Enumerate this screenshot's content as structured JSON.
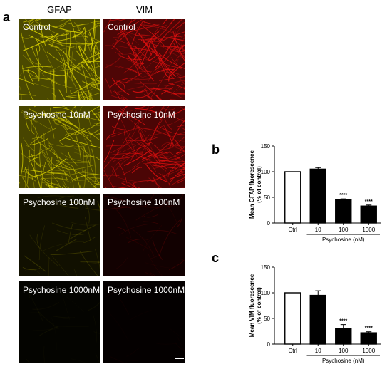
{
  "panel_a": {
    "letter": "a",
    "columns": [
      "GFAP",
      "VIM"
    ],
    "rows": [
      {
        "gfap_label": "Control",
        "vim_label": "Control",
        "intensity": 1.0
      },
      {
        "gfap_label": "Psychosine 10nM",
        "vim_label": "Psychosine 10nM",
        "intensity": 0.95
      },
      {
        "gfap_label": "Psychosine 100nM",
        "vim_label": "Psychosine 100nM",
        "intensity": 0.22
      },
      {
        "gfap_label": "Psychosine 1000nM",
        "vim_label": "Psychosine 1000nM",
        "intensity": 0.06
      }
    ],
    "colors": {
      "gfap": "#d8d000",
      "vim": "#e01010"
    }
  },
  "chart_data": [
    {
      "panel": "b",
      "type": "bar",
      "categories": [
        "Ctrl",
        "10",
        "100",
        "1000"
      ],
      "values": [
        100,
        105,
        45,
        33
      ],
      "errors": [
        0,
        3,
        2,
        2
      ],
      "significance": [
        "",
        "",
        "****",
        "****"
      ],
      "bar_fill": [
        "white",
        "black",
        "black",
        "black"
      ],
      "ylabel_line1": "Mean GFAP fluorescence",
      "ylabel_line2": "(% of control)",
      "xgroup_label": "Psychosine (nM)",
      "ylim": [
        0,
        150
      ],
      "yticks": [
        0,
        50,
        100,
        150
      ],
      "grid": false
    },
    {
      "panel": "c",
      "type": "bar",
      "categories": [
        "Ctrl",
        "10",
        "100",
        "1000"
      ],
      "values": [
        100,
        95,
        30,
        22
      ],
      "errors": [
        0,
        9,
        8,
        2
      ],
      "significance": [
        "",
        "",
        "****",
        "****"
      ],
      "bar_fill": [
        "white",
        "black",
        "black",
        "black"
      ],
      "ylabel_line1": "Mean VIM fluorescence",
      "ylabel_line2": "(% of control)",
      "xgroup_label": "Psychosine (nM)",
      "ylim": [
        0,
        150
      ],
      "yticks": [
        0,
        50,
        100,
        150
      ],
      "grid": false
    }
  ]
}
